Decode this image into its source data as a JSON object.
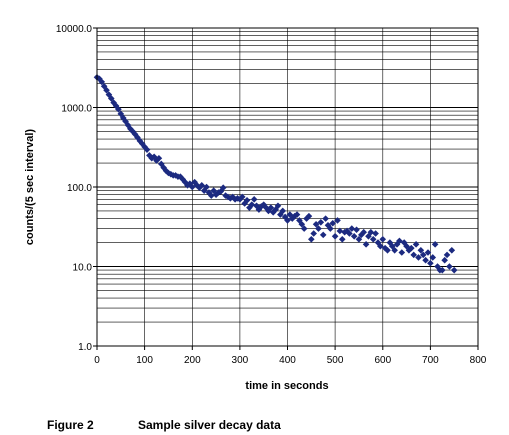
{
  "chart_data": {
    "type": "scatter",
    "title": "",
    "xlabel": "time in seconds",
    "ylabel": "counts/(5 sec interval)",
    "xlim": [
      0,
      800
    ],
    "ylim": [
      1,
      10000
    ],
    "yscale": "log",
    "grid": "major and minor gridlines",
    "legend": "none",
    "marker": "diamond",
    "marker_color": "#1c2a80",
    "x_ticks": [
      "0",
      "100",
      "200",
      "300",
      "400",
      "500",
      "600",
      "700",
      "800"
    ],
    "x_tick_values": [
      0,
      100,
      200,
      300,
      400,
      500,
      600,
      700,
      800
    ],
    "y_ticks": [
      "1.0",
      "10.0",
      "100.0",
      "1000.0",
      "10000.0"
    ],
    "y_tick_values": [
      1,
      10,
      100,
      1000,
      10000
    ],
    "points": [
      {
        "x": 0,
        "y": 2400
      },
      {
        "x": 5,
        "y": 2300
      },
      {
        "x": 10,
        "y": 2100
      },
      {
        "x": 15,
        "y": 1850
      },
      {
        "x": 20,
        "y": 1650
      },
      {
        "x": 25,
        "y": 1450
      },
      {
        "x": 30,
        "y": 1300
      },
      {
        "x": 35,
        "y": 1150
      },
      {
        "x": 40,
        "y": 1050
      },
      {
        "x": 45,
        "y": 950
      },
      {
        "x": 50,
        "y": 830
      },
      {
        "x": 55,
        "y": 740
      },
      {
        "x": 60,
        "y": 670
      },
      {
        "x": 65,
        "y": 600
      },
      {
        "x": 70,
        "y": 540
      },
      {
        "x": 75,
        "y": 500
      },
      {
        "x": 80,
        "y": 460
      },
      {
        "x": 85,
        "y": 420
      },
      {
        "x": 90,
        "y": 380
      },
      {
        "x": 95,
        "y": 350
      },
      {
        "x": 100,
        "y": 320
      },
      {
        "x": 105,
        "y": 295
      },
      {
        "x": 110,
        "y": 250
      },
      {
        "x": 115,
        "y": 230
      },
      {
        "x": 120,
        "y": 240
      },
      {
        "x": 125,
        "y": 215
      },
      {
        "x": 130,
        "y": 230
      },
      {
        "x": 135,
        "y": 195
      },
      {
        "x": 140,
        "y": 175
      },
      {
        "x": 145,
        "y": 160
      },
      {
        "x": 150,
        "y": 150
      },
      {
        "x": 155,
        "y": 145
      },
      {
        "x": 160,
        "y": 140
      },
      {
        "x": 165,
        "y": 140
      },
      {
        "x": 170,
        "y": 135
      },
      {
        "x": 175,
        "y": 135
      },
      {
        "x": 180,
        "y": 125
      },
      {
        "x": 185,
        "y": 115
      },
      {
        "x": 190,
        "y": 105
      },
      {
        "x": 195,
        "y": 110
      },
      {
        "x": 200,
        "y": 100
      },
      {
        "x": 205,
        "y": 115
      },
      {
        "x": 210,
        "y": 105
      },
      {
        "x": 215,
        "y": 98
      },
      {
        "x": 220,
        "y": 105
      },
      {
        "x": 225,
        "y": 90
      },
      {
        "x": 230,
        "y": 100
      },
      {
        "x": 235,
        "y": 85
      },
      {
        "x": 240,
        "y": 78
      },
      {
        "x": 245,
        "y": 90
      },
      {
        "x": 250,
        "y": 80
      },
      {
        "x": 255,
        "y": 85
      },
      {
        "x": 260,
        "y": 88
      },
      {
        "x": 265,
        "y": 98
      },
      {
        "x": 270,
        "y": 78
      },
      {
        "x": 275,
        "y": 75
      },
      {
        "x": 280,
        "y": 72
      },
      {
        "x": 285,
        "y": 75
      },
      {
        "x": 290,
        "y": 70
      },
      {
        "x": 295,
        "y": 72
      },
      {
        "x": 300,
        "y": 70
      },
      {
        "x": 305,
        "y": 75
      },
      {
        "x": 310,
        "y": 62
      },
      {
        "x": 315,
        "y": 68
      },
      {
        "x": 320,
        "y": 55
      },
      {
        "x": 325,
        "y": 60
      },
      {
        "x": 330,
        "y": 70
      },
      {
        "x": 335,
        "y": 58
      },
      {
        "x": 340,
        "y": 52
      },
      {
        "x": 345,
        "y": 57
      },
      {
        "x": 350,
        "y": 60
      },
      {
        "x": 355,
        "y": 55
      },
      {
        "x": 360,
        "y": 50
      },
      {
        "x": 365,
        "y": 55
      },
      {
        "x": 370,
        "y": 48
      },
      {
        "x": 375,
        "y": 52
      },
      {
        "x": 380,
        "y": 58
      },
      {
        "x": 385,
        "y": 45
      },
      {
        "x": 390,
        "y": 50
      },
      {
        "x": 395,
        "y": 42
      },
      {
        "x": 400,
        "y": 38
      },
      {
        "x": 405,
        "y": 45
      },
      {
        "x": 410,
        "y": 40
      },
      {
        "x": 415,
        "y": 43
      },
      {
        "x": 420,
        "y": 45
      },
      {
        "x": 425,
        "y": 38
      },
      {
        "x": 430,
        "y": 34
      },
      {
        "x": 435,
        "y": 30
      },
      {
        "x": 440,
        "y": 40
      },
      {
        "x": 445,
        "y": 43
      },
      {
        "x": 450,
        "y": 22
      },
      {
        "x": 455,
        "y": 26
      },
      {
        "x": 460,
        "y": 34
      },
      {
        "x": 465,
        "y": 30
      },
      {
        "x": 470,
        "y": 36
      },
      {
        "x": 475,
        "y": 25
      },
      {
        "x": 480,
        "y": 40
      },
      {
        "x": 485,
        "y": 33
      },
      {
        "x": 490,
        "y": 30
      },
      {
        "x": 495,
        "y": 35
      },
      {
        "x": 500,
        "y": 24
      },
      {
        "x": 505,
        "y": 38
      },
      {
        "x": 510,
        "y": 28
      },
      {
        "x": 515,
        "y": 22
      },
      {
        "x": 520,
        "y": 27
      },
      {
        "x": 525,
        "y": 28
      },
      {
        "x": 530,
        "y": 26
      },
      {
        "x": 535,
        "y": 30
      },
      {
        "x": 540,
        "y": 24
      },
      {
        "x": 545,
        "y": 29
      },
      {
        "x": 550,
        "y": 22
      },
      {
        "x": 555,
        "y": 25
      },
      {
        "x": 560,
        "y": 27
      },
      {
        "x": 565,
        "y": 19
      },
      {
        "x": 570,
        "y": 24
      },
      {
        "x": 575,
        "y": 27
      },
      {
        "x": 580,
        "y": 22
      },
      {
        "x": 585,
        "y": 26
      },
      {
        "x": 590,
        "y": 20
      },
      {
        "x": 595,
        "y": 18
      },
      {
        "x": 600,
        "y": 22
      },
      {
        "x": 605,
        "y": 17
      },
      {
        "x": 610,
        "y": 16
      },
      {
        "x": 615,
        "y": 20
      },
      {
        "x": 620,
        "y": 18
      },
      {
        "x": 625,
        "y": 16
      },
      {
        "x": 630,
        "y": 19
      },
      {
        "x": 635,
        "y": 21
      },
      {
        "x": 640,
        "y": 15
      },
      {
        "x": 645,
        "y": 20
      },
      {
        "x": 650,
        "y": 18
      },
      {
        "x": 655,
        "y": 16
      },
      {
        "x": 660,
        "y": 17
      },
      {
        "x": 665,
        "y": 14
      },
      {
        "x": 670,
        "y": 19
      },
      {
        "x": 675,
        "y": 13
      },
      {
        "x": 680,
        "y": 16
      },
      {
        "x": 685,
        "y": 14
      },
      {
        "x": 690,
        "y": 12
      },
      {
        "x": 695,
        "y": 15
      },
      {
        "x": 700,
        "y": 11
      },
      {
        "x": 705,
        "y": 13
      },
      {
        "x": 710,
        "y": 19
      },
      {
        "x": 715,
        "y": 10
      },
      {
        "x": 720,
        "y": 9
      },
      {
        "x": 725,
        "y": 9
      },
      {
        "x": 730,
        "y": 12
      },
      {
        "x": 735,
        "y": 14
      },
      {
        "x": 740,
        "y": 10
      },
      {
        "x": 745,
        "y": 16
      },
      {
        "x": 750,
        "y": 9
      }
    ]
  },
  "caption": {
    "figure_number": "Figure 2",
    "text": "Sample silver decay data"
  }
}
